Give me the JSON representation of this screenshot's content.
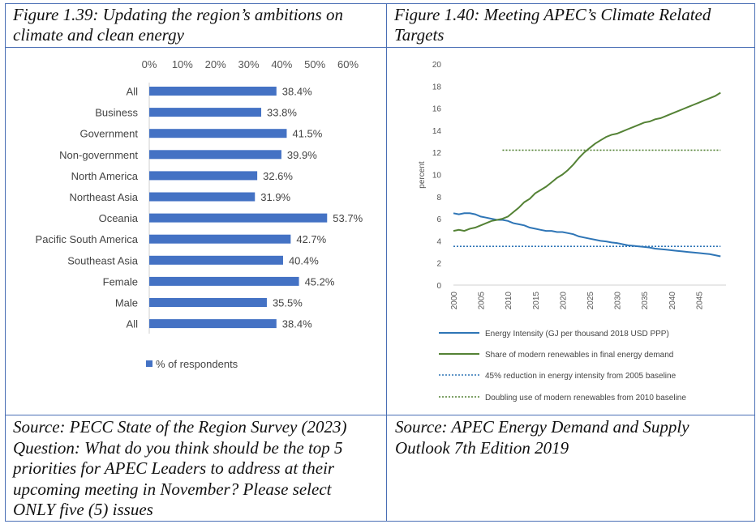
{
  "left_panel": {
    "caption": "Figure 1.39: Updating the region’s ambitions on climate and clean energy",
    "source_lines": [
      "Source: PECC State of the Region Survey (2023)",
      "Question: What do you think should be the top 5",
      "priorities for APEC Leaders to address at their",
      "upcoming meeting in November?  Please select",
      "ONLY five (5) issues"
    ]
  },
  "right_panel": {
    "caption": "Figure 1.40: Meeting APEC’s Climate Related Targets",
    "source_lines": [
      "Source: APEC Energy Demand and Supply",
      "Outlook 7th Edition 2019"
    ]
  },
  "colors": {
    "bar": "#4472c4",
    "intensity": "#2e75b6",
    "renewables": "#548235",
    "border": "#4a6fb5"
  },
  "chart_data": [
    {
      "type": "bar",
      "orientation": "horizontal",
      "categories": [
        "All",
        "Business",
        "Government",
        "Non-government",
        "North America",
        "Northeast Asia",
        "Oceania",
        "Pacific South America",
        "Southeast Asia",
        "Female",
        "Male",
        "All"
      ],
      "values": [
        38.4,
        33.8,
        41.5,
        39.9,
        32.6,
        31.9,
        53.7,
        42.7,
        40.4,
        45.2,
        35.5,
        38.4
      ],
      "value_labels": [
        "38.4%",
        "33.8%",
        "41.5%",
        "39.9%",
        "32.6%",
        "31.9%",
        "53.7%",
        "42.7%",
        "40.4%",
        "45.2%",
        "35.5%",
        "38.4%"
      ],
      "xlim": [
        0,
        60
      ],
      "xticks": [
        "0%",
        "10%",
        "20%",
        "30%",
        "40%",
        "50%",
        "60%"
      ],
      "x_axis_position": "top",
      "legend": [
        "% of respondents"
      ],
      "legend_position": "bottom"
    },
    {
      "type": "line",
      "ylabel": "percent",
      "ylim": [
        0,
        20
      ],
      "yticks": [
        "0",
        "2",
        "4",
        "6",
        "8",
        "10",
        "12",
        "14",
        "16",
        "18",
        "20"
      ],
      "xlim": [
        2000,
        2050
      ],
      "xticks": [
        "2000",
        "2005",
        "2010",
        "2015",
        "2020",
        "2025",
        "2030",
        "2035",
        "2040",
        "2045"
      ],
      "x": [
        2000,
        2001,
        2002,
        2003,
        2004,
        2005,
        2006,
        2007,
        2008,
        2009,
        2010,
        2011,
        2012,
        2013,
        2014,
        2015,
        2016,
        2017,
        2018,
        2019,
        2020,
        2021,
        2022,
        2023,
        2024,
        2025,
        2026,
        2027,
        2028,
        2029,
        2030,
        2031,
        2032,
        2033,
        2034,
        2035,
        2036,
        2037,
        2038,
        2039,
        2040,
        2041,
        2042,
        2043,
        2044,
        2045,
        2046,
        2047,
        2048,
        2049
      ],
      "series": [
        {
          "name": "Energy Intensity (GJ per thousand 2018 USD PPP)",
          "style": "solid",
          "values": [
            6.5,
            6.4,
            6.5,
            6.5,
            6.4,
            6.2,
            6.1,
            6.0,
            5.9,
            5.9,
            5.8,
            5.6,
            5.5,
            5.4,
            5.2,
            5.1,
            5.0,
            4.9,
            4.9,
            4.8,
            4.8,
            4.7,
            4.6,
            4.4,
            4.3,
            4.2,
            4.1,
            4.0,
            3.95,
            3.85,
            3.8,
            3.7,
            3.6,
            3.55,
            3.5,
            3.45,
            3.4,
            3.3,
            3.25,
            3.2,
            3.15,
            3.1,
            3.05,
            3.0,
            2.95,
            2.9,
            2.85,
            2.8,
            2.7,
            2.6
          ]
        },
        {
          "name": "Share of modern renewables in final energy demand",
          "style": "solid",
          "values": [
            4.9,
            5.0,
            4.9,
            5.1,
            5.2,
            5.4,
            5.6,
            5.8,
            5.9,
            6.0,
            6.2,
            6.6,
            7.0,
            7.5,
            7.8,
            8.3,
            8.6,
            8.9,
            9.3,
            9.7,
            10.0,
            10.4,
            10.9,
            11.5,
            12.0,
            12.4,
            12.8,
            13.1,
            13.4,
            13.6,
            13.7,
            13.9,
            14.1,
            14.3,
            14.5,
            14.7,
            14.8,
            15.0,
            15.1,
            15.3,
            15.5,
            15.7,
            15.9,
            16.1,
            16.3,
            16.5,
            16.7,
            16.9,
            17.1,
            17.4
          ]
        },
        {
          "name": "45% reduction in energy intensity from 2005 baseline",
          "style": "dotted",
          "x_range": [
            2000,
            2049
          ],
          "value": 3.5
        },
        {
          "name": "Doubling use of modern renewables from 2010 baseline",
          "style": "dotted",
          "x_range": [
            2009,
            2049
          ],
          "value": 12.2
        }
      ],
      "legend_position": "bottom"
    }
  ]
}
